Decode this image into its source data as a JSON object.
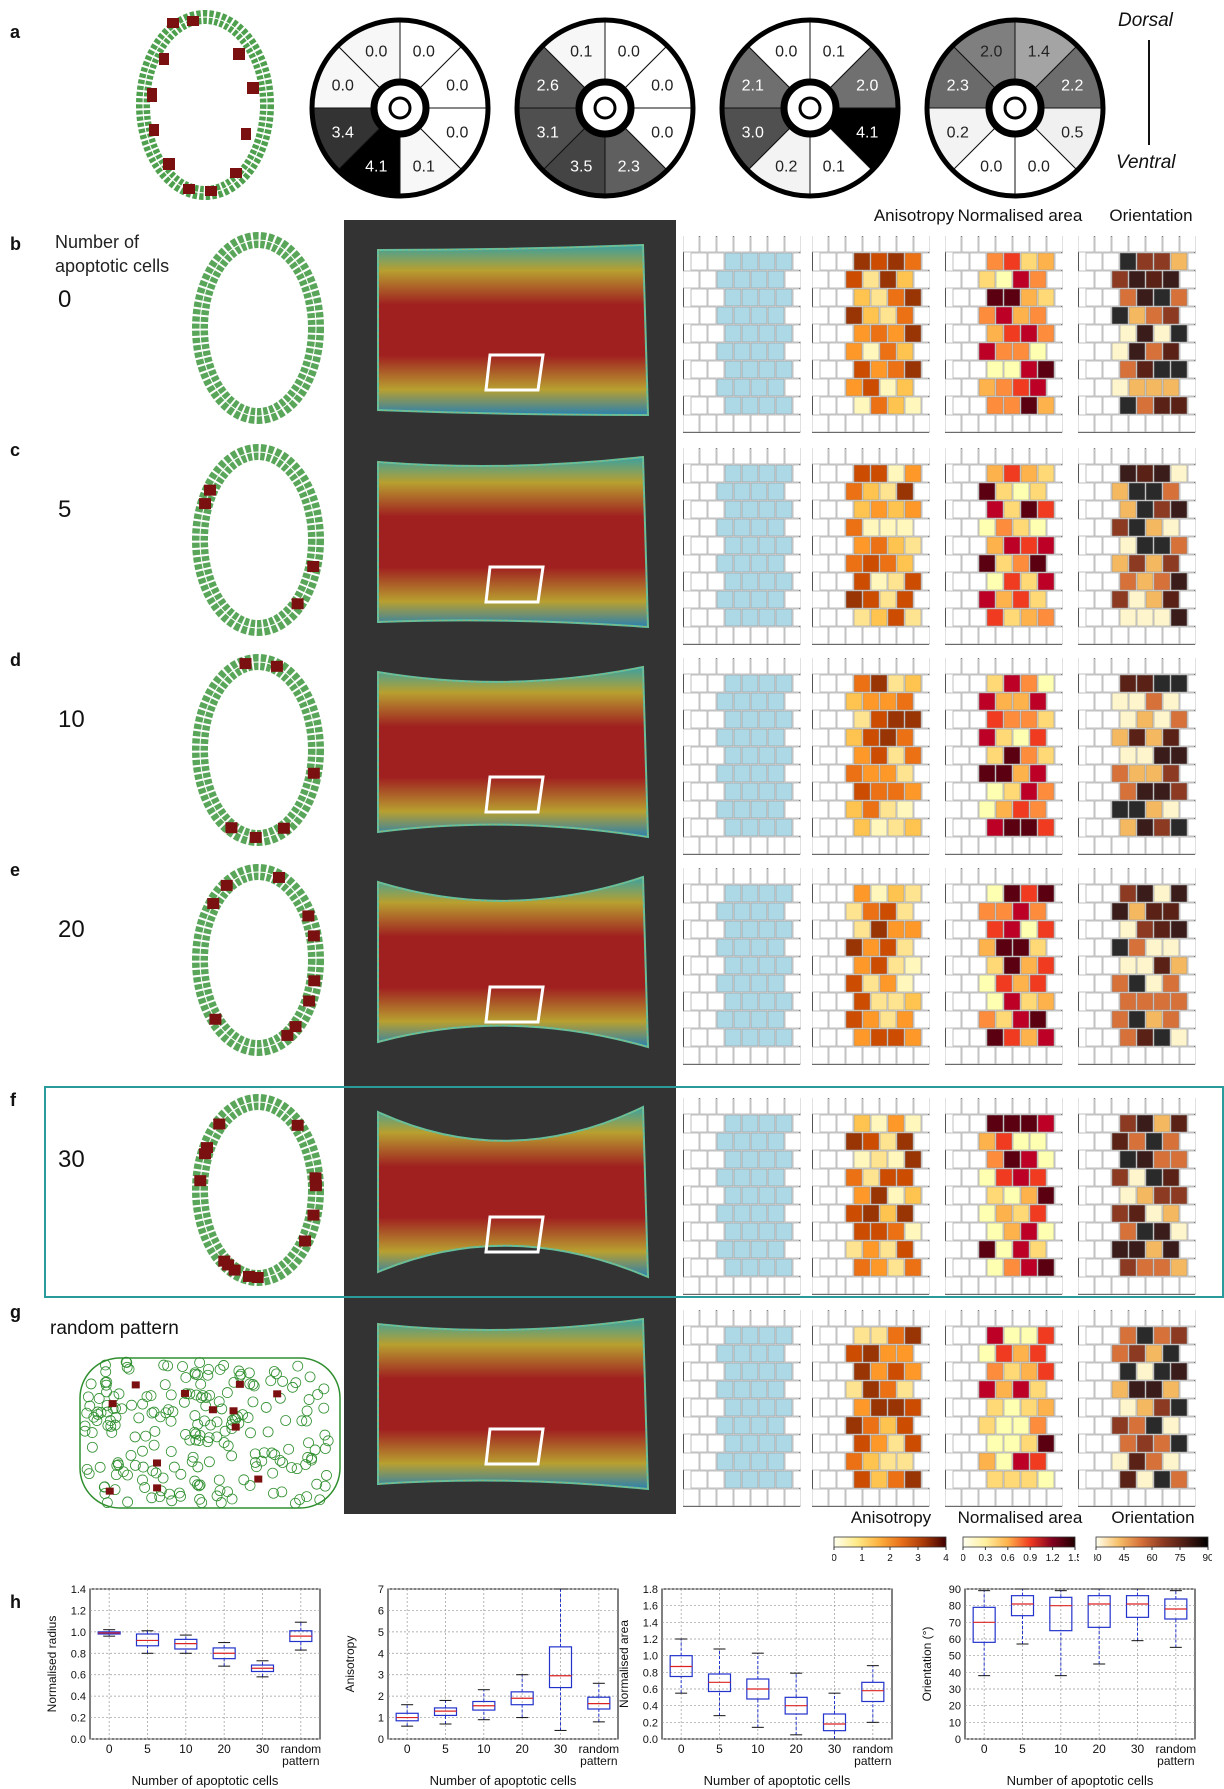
{
  "panel_letters": [
    "a",
    "b",
    "c",
    "d",
    "e",
    "f",
    "g",
    "h"
  ],
  "orientation_labels": {
    "top": "Dorsal",
    "bottom": "Ventral"
  },
  "pie_charts": [
    {
      "values": [
        "0.0",
        "0.0",
        "0.0",
        "0.1",
        "4.1",
        "3.4",
        "0.0",
        "0.0"
      ],
      "fills": [
        "#ffffff",
        "#ffffff",
        "#ffffff",
        "#f7f7f7",
        "#000000",
        "#333333",
        "#f7f7f7",
        "#f7f7f7"
      ]
    },
    {
      "values": [
        "0.0",
        "0.0",
        "0.0",
        "2.3",
        "3.5",
        "3.1",
        "2.6",
        "0.1"
      ],
      "fills": [
        "#ffffff",
        "#ffffff",
        "#ffffff",
        "#5f5f5f",
        "#444444",
        "#4f4f4f",
        "#595959",
        "#f7f7f7"
      ]
    },
    {
      "values": [
        "0.1",
        "2.0",
        "4.1",
        "0.1",
        "0.2",
        "3.0",
        "2.1",
        "0.0"
      ],
      "fills": [
        "#ffffff",
        "#707070",
        "#000000",
        "#ffffff",
        "#f3f3f3",
        "#505050",
        "#6f6f6f",
        "#ffffff"
      ]
    },
    {
      "values": [
        "1.4",
        "2.2",
        "0.5",
        "0.0",
        "0.0",
        "0.2",
        "2.3",
        "2.0"
      ],
      "fills": [
        "#a4a4a4",
        "#6d6d6d",
        "#f0f0f0",
        "#ffffff",
        "#ffffff",
        "#f3f3f3",
        "#6a6a6a",
        "#7f7f7f"
      ]
    }
  ],
  "row_header": "Number of apoptotic cells",
  "rows": [
    {
      "letter": "b",
      "label": "0"
    },
    {
      "letter": "c",
      "label": "5"
    },
    {
      "letter": "d",
      "label": "10"
    },
    {
      "letter": "e",
      "label": "20"
    },
    {
      "letter": "f",
      "label": "30"
    },
    {
      "letter": "g",
      "label": "random pattern"
    }
  ],
  "column_headers": [
    "Anisotropy",
    "Normalised area",
    "Orientation"
  ],
  "colorbars": [
    {
      "title": "Anisotropy",
      "ticks": [
        "0",
        "1",
        "2",
        "3",
        "4"
      ]
    },
    {
      "title": "Normalised area",
      "ticks": [
        "0",
        "0.3",
        "0.6",
        "0.9",
        "1.2",
        "1.5"
      ]
    },
    {
      "title": "Orientation",
      "ticks": [
        "30",
        "45",
        "60",
        "75",
        "90"
      ]
    }
  ],
  "colors": {
    "ring_cell": "#2f8f2f",
    "apoptotic_cell": "#7a1010",
    "highlight": "#2a9a9a",
    "tracked_cells": "#add8e6",
    "boxplot_box": "#2233cc",
    "boxplot_median": "#dd2222"
  },
  "chart_data": [
    {
      "type": "box",
      "title": "",
      "xlabel": "Number of apoptotic cells",
      "ylabel": "Normalised radius",
      "categories": [
        "0",
        "5",
        "10",
        "20",
        "30",
        "random pattern"
      ],
      "ylim": [
        0.0,
        1.4
      ],
      "yticks": [
        "0.0",
        "0.2",
        "0.4",
        "0.6",
        "0.8",
        "1.0",
        "1.2",
        "1.4"
      ],
      "grid": true,
      "boxes": [
        {
          "q1": 0.98,
          "median": 0.99,
          "q3": 1.0,
          "whisker_low": 0.96,
          "whisker_high": 1.02
        },
        {
          "q1": 0.87,
          "median": 0.92,
          "q3": 0.98,
          "whisker_low": 0.8,
          "whisker_high": 1.01
        },
        {
          "q1": 0.84,
          "median": 0.89,
          "q3": 0.93,
          "whisker_low": 0.8,
          "whisker_high": 0.97
        },
        {
          "q1": 0.75,
          "median": 0.8,
          "q3": 0.85,
          "whisker_low": 0.68,
          "whisker_high": 0.9
        },
        {
          "q1": 0.63,
          "median": 0.66,
          "q3": 0.69,
          "whisker_low": 0.58,
          "whisker_high": 0.73
        },
        {
          "q1": 0.91,
          "median": 0.96,
          "q3": 1.01,
          "whisker_low": 0.83,
          "whisker_high": 1.09
        }
      ]
    },
    {
      "type": "box",
      "title": "",
      "xlabel": "Number of apoptotic cells",
      "ylabel": "Anisotropy",
      "categories": [
        "0",
        "5",
        "10",
        "20",
        "30",
        "random pattern"
      ],
      "ylim": [
        0,
        7
      ],
      "yticks": [
        "0",
        "1",
        "2",
        "3",
        "4",
        "5",
        "6",
        "7"
      ],
      "grid": true,
      "boxes": [
        {
          "q1": 0.85,
          "median": 1.0,
          "q3": 1.2,
          "whisker_low": 0.6,
          "whisker_high": 1.6
        },
        {
          "q1": 1.1,
          "median": 1.3,
          "q3": 1.45,
          "whisker_low": 0.7,
          "whisker_high": 1.8
        },
        {
          "q1": 1.35,
          "median": 1.55,
          "q3": 1.75,
          "whisker_low": 0.9,
          "whisker_high": 2.3
        },
        {
          "q1": 1.6,
          "median": 1.9,
          "q3": 2.2,
          "whisker_low": 1.0,
          "whisker_high": 3.0
        },
        {
          "q1": 2.4,
          "median": 2.95,
          "q3": 4.3,
          "whisker_low": 0.4,
          "whisker_high": 7.0
        },
        {
          "q1": 1.4,
          "median": 1.65,
          "q3": 1.95,
          "whisker_low": 0.8,
          "whisker_high": 2.6
        }
      ]
    },
    {
      "type": "box",
      "title": "",
      "xlabel": "Number of apoptotic cells",
      "ylabel": "Normalised area",
      "categories": [
        "0",
        "5",
        "10",
        "20",
        "30",
        "random pattern"
      ],
      "ylim": [
        0.0,
        1.8
      ],
      "yticks": [
        "0.0",
        "0.2",
        "0.4",
        "0.6",
        "0.8",
        "1.0",
        "1.2",
        "1.4",
        "1.6",
        "1.8"
      ],
      "grid": true,
      "boxes": [
        {
          "q1": 0.75,
          "median": 0.87,
          "q3": 1.0,
          "whisker_low": 0.55,
          "whisker_high": 1.2
        },
        {
          "q1": 0.57,
          "median": 0.68,
          "q3": 0.78,
          "whisker_low": 0.28,
          "whisker_high": 1.08
        },
        {
          "q1": 0.48,
          "median": 0.6,
          "q3": 0.72,
          "whisker_low": 0.14,
          "whisker_high": 1.03
        },
        {
          "q1": 0.3,
          "median": 0.4,
          "q3": 0.5,
          "whisker_low": 0.05,
          "whisker_high": 0.79
        },
        {
          "q1": 0.1,
          "median": 0.18,
          "q3": 0.3,
          "whisker_low": 0.0,
          "whisker_high": 0.55
        },
        {
          "q1": 0.45,
          "median": 0.58,
          "q3": 0.68,
          "whisker_low": 0.2,
          "whisker_high": 0.88
        }
      ]
    },
    {
      "type": "box",
      "title": "",
      "xlabel": "Number of apoptotic cells",
      "ylabel": "Orientation (°)",
      "categories": [
        "0",
        "5",
        "10",
        "20",
        "30",
        "random pattern"
      ],
      "ylim": [
        0,
        90
      ],
      "yticks": [
        "0",
        "10",
        "20",
        "30",
        "40",
        "50",
        "60",
        "70",
        "80",
        "90"
      ],
      "grid": true,
      "boxes": [
        {
          "q1": 58,
          "median": 70,
          "q3": 79,
          "whisker_low": 38,
          "whisker_high": 89
        },
        {
          "q1": 74,
          "median": 81,
          "q3": 86,
          "whisker_low": 57,
          "whisker_high": 90
        },
        {
          "q1": 65,
          "median": 80,
          "q3": 85,
          "whisker_low": 38,
          "whisker_high": 89
        },
        {
          "q1": 67,
          "median": 81,
          "q3": 86,
          "whisker_low": 45,
          "whisker_high": 90
        },
        {
          "q1": 73,
          "median": 81,
          "q3": 86,
          "whisker_low": 59,
          "whisker_high": 90
        },
        {
          "q1": 72,
          "median": 78,
          "q3": 84,
          "whisker_low": 55,
          "whisker_high": 89
        }
      ]
    }
  ]
}
